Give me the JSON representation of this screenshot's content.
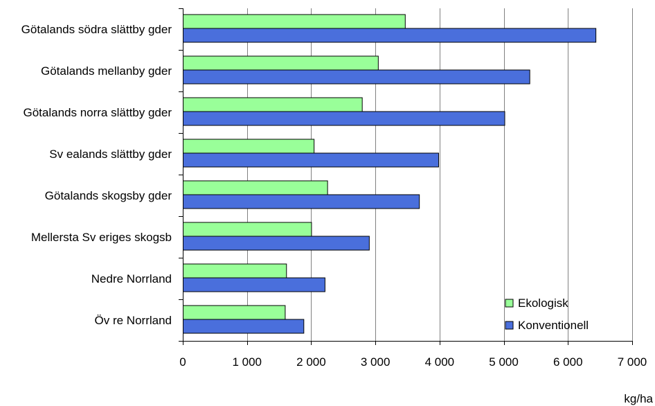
{
  "chart_data": {
    "type": "bar",
    "orientation": "horizontal",
    "categories": [
      "Götalands södra slättby gder",
      "Götalands mellanby gder",
      "Götalands norra slättby gder",
      "Sv ealands slättby gder",
      "Götalands skogsby gder",
      "Mellersta Sv eriges skogsb",
      "Nedre Norrland",
      "Öv re Norrland"
    ],
    "series": [
      {
        "name": "Ekologisk",
        "color": "#99ff99",
        "values": [
          3460,
          3040,
          2790,
          2040,
          2250,
          2000,
          1610,
          1590
        ]
      },
      {
        "name": "Konventionell",
        "color": "#4a6fdc",
        "values": [
          6430,
          5400,
          5010,
          3980,
          3680,
          2900,
          2210,
          1880
        ]
      }
    ],
    "xlim": [
      0,
      7000
    ],
    "xticks": [
      0,
      1000,
      2000,
      3000,
      4000,
      5000,
      6000,
      7000
    ],
    "xtick_labels": [
      "0",
      "1 000",
      "2 000",
      "3 000",
      "4 000",
      "5 000",
      "6 000",
      "7 000"
    ],
    "unit": "kg/ha",
    "grid": "vertical",
    "legend_position": "bottom-right"
  }
}
